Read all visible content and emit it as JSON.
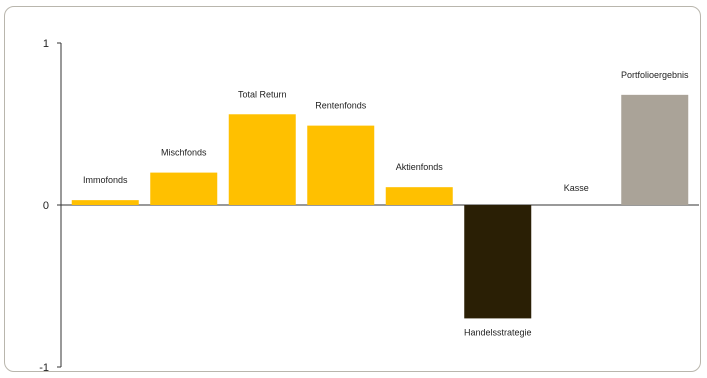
{
  "chart_data": {
    "type": "bar",
    "title": "",
    "xlabel": "",
    "ylabel": "",
    "ylim": [
      -1,
      1
    ],
    "yticks": [
      1,
      0,
      -1
    ],
    "grid": false,
    "legend": "none",
    "categories": [
      "Immofonds",
      "Mischfonds",
      "Total Return",
      "Rentenfonds",
      "Aktienfonds",
      "Handelsstrategie",
      "Kasse",
      "Portfolioergebnis"
    ],
    "values": [
      0.03,
      0.2,
      0.56,
      0.49,
      0.11,
      -0.7,
      0.0,
      0.68
    ],
    "colors": [
      "#ffc000",
      "#ffc000",
      "#ffc000",
      "#ffc000",
      "#ffc000",
      "#2a1f05",
      "#ffc000",
      "#aaa398"
    ]
  }
}
